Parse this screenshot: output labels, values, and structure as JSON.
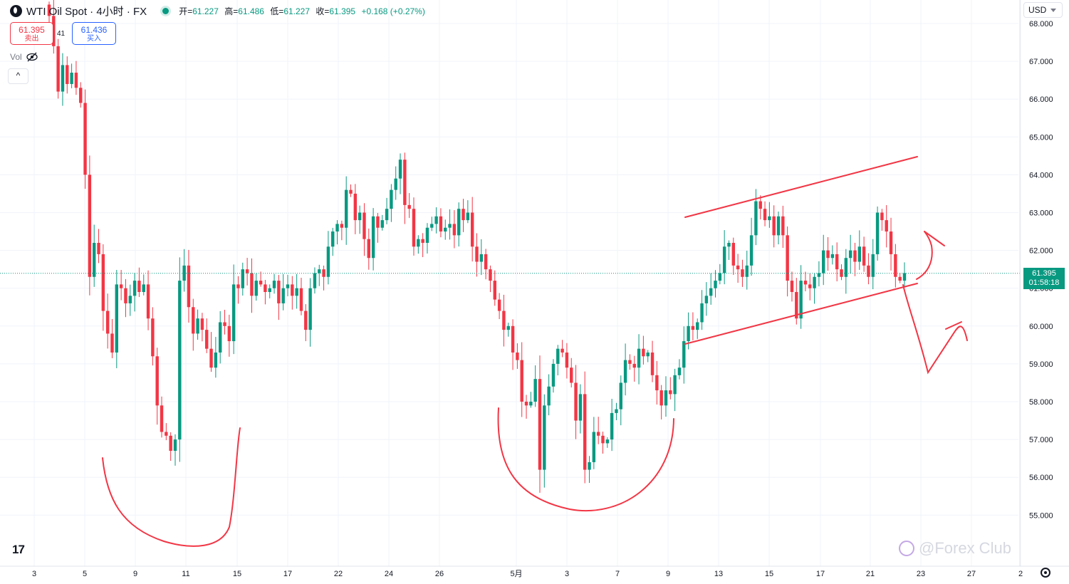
{
  "header": {
    "title": "WTI Oil Spot · 4小时 · FX",
    "ohlc": [
      {
        "label": "开=",
        "value": "61.227"
      },
      {
        "label": "高=",
        "value": "61.486"
      },
      {
        "label": "低=",
        "value": "61.227"
      },
      {
        "label": "收=",
        "value": "61.395"
      }
    ],
    "change": "+0.168 (+0.27%)"
  },
  "trade": {
    "sell_price": "61.395",
    "sell_label": "卖出",
    "spread": "41",
    "buy_price": "61.436",
    "buy_label": "买入"
  },
  "volume_label": "Vol",
  "currency": "USD",
  "current_price": {
    "price": "61.395",
    "countdown": "01:58:18"
  },
  "watermark": "@Forex Club",
  "tv_logo": "17",
  "colors": {
    "up": "#089981",
    "down": "#f23645",
    "drawing": "#f23645",
    "grid": "#f0f3fa"
  },
  "chart_data": {
    "type": "candlestick",
    "y_ticks": [
      "55.000",
      "56.000",
      "57.000",
      "58.000",
      "59.000",
      "60.000",
      "61.000",
      "62.000",
      "63.000",
      "64.000",
      "65.000",
      "66.000",
      "67.000",
      "68.000"
    ],
    "y_tick_values": [
      55,
      56,
      57,
      58,
      59,
      60,
      61,
      62,
      63,
      64,
      65,
      66,
      67,
      68
    ],
    "ylim": [
      54.55,
      68.3
    ],
    "x_ticks": [
      "3",
      "5",
      "9",
      "11",
      "15",
      "17",
      "22",
      "24",
      "26",
      "5月",
      "3",
      "7",
      "9",
      "13",
      "15",
      "17",
      "21",
      "23",
      "27",
      "2"
    ],
    "last_price": 61.395,
    "grid": true,
    "closes": [
      68.2,
      67.4,
      66.2,
      66.9,
      66.4,
      66.7,
      66.3,
      65.9,
      64.0,
      61.3,
      62.2,
      61.9,
      60.4,
      59.8,
      59.3,
      61.1,
      61.0,
      60.6,
      60.8,
      61.2,
      60.9,
      61.1,
      60.2,
      59.2,
      57.9,
      57.2,
      57.1,
      56.7,
      57.0,
      61.2,
      61.6,
      60.5,
      59.8,
      60.2,
      59.9,
      59.4,
      58.9,
      59.3,
      60.1,
      60.0,
      59.6,
      61.1,
      61.0,
      61.5,
      61.4,
      60.8,
      61.2,
      61.1,
      60.9,
      61.0,
      61.2,
      60.6,
      61.0,
      61.1,
      60.8,
      61.0,
      60.4,
      59.9,
      61.0,
      61.4,
      61.5,
      61.3,
      62.1,
      62.5,
      62.7,
      62.6,
      63.6,
      63.5,
      62.8,
      63.0,
      62.3,
      61.8,
      62.9,
      62.6,
      62.8,
      63.1,
      63.6,
      63.9,
      64.4,
      63.2,
      63.1,
      62.1,
      62.3,
      62.2,
      62.6,
      62.7,
      62.9,
      62.5,
      62.6,
      62.7,
      62.4,
      63.1,
      62.8,
      63.0,
      62.1,
      61.7,
      61.9,
      61.5,
      61.2,
      60.7,
      60.4,
      59.9,
      60.0,
      59.3,
      59.1,
      58.0,
      57.9,
      58.0,
      58.6,
      56.2,
      57.9,
      58.4,
      59.0,
      59.4,
      59.3,
      58.9,
      58.5,
      57.5,
      58.2,
      56.2,
      56.4,
      57.2,
      57.1,
      56.9,
      57.0,
      57.7,
      57.8,
      58.5,
      59.1,
      59.0,
      58.9,
      59.4,
      59.2,
      59.3,
      58.7,
      58.3,
      57.9,
      58.3,
      58.2,
      58.7,
      58.9,
      59.6,
      60.0,
      59.9,
      60.1,
      60.6,
      60.8,
      61.0,
      61.2,
      61.4,
      62.1,
      62.2,
      61.6,
      61.5,
      61.3,
      61.6,
      62.4,
      63.3,
      63.1,
      62.8,
      62.9,
      62.4,
      62.9,
      62.4,
      61.2,
      60.9,
      60.2,
      61.2,
      61.1,
      61.0,
      61.3,
      61.4,
      62.0,
      61.8,
      61.9,
      61.5,
      61.3,
      61.8,
      62.0,
      61.7,
      62.1,
      61.6,
      61.3,
      61.9,
      63.0,
      62.8,
      62.5,
      61.9,
      61.3,
      61.2,
      61.4
    ],
    "annotations": [
      "ascending channel upper line",
      "ascending channel lower line",
      "rounded bottom arc (left)",
      "rounded bottom arc (middle)",
      "up arrow",
      "down-then-up arrow"
    ]
  }
}
